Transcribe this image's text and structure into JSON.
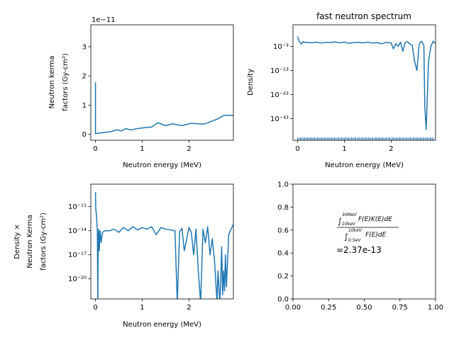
{
  "chart_data": [
    {
      "type": "line",
      "title": "",
      "xlabel": "Neutron energy (MeV)",
      "ylabel_lines": [
        "Neutron kerma",
        "factors (Gy-cm²)"
      ],
      "y_offset_text": "1e−11",
      "x_tick_labels": [
        "0",
        "1",
        "2"
      ],
      "y_tick_labels": [
        "0",
        "1",
        "2",
        "3"
      ],
      "xlim": [
        -0.1,
        2.95
      ],
      "ylim": [
        -0.2,
        3.75
      ],
      "color": "#1f77b4",
      "series": [
        {
          "x": [
            0.0,
            0.0,
            0.001,
            0.05,
            0.2,
            0.35,
            0.45,
            0.55,
            0.65,
            0.75,
            0.9,
            1.05,
            1.2,
            1.33,
            1.5,
            1.65,
            1.85,
            2.05,
            2.32,
            2.6,
            2.75,
            2.95
          ],
          "y": [
            1.78,
            0.08,
            0.02,
            0.04,
            0.07,
            0.1,
            0.16,
            0.12,
            0.2,
            0.15,
            0.2,
            0.23,
            0.25,
            0.4,
            0.3,
            0.36,
            0.3,
            0.38,
            0.35,
            0.52,
            0.65,
            0.65
          ]
        }
      ]
    },
    {
      "type": "line",
      "title": "fast neutron spectrum",
      "xlabel": "Neutron energy (MeV)",
      "ylabel": "Density",
      "x_tick_labels": [
        "0",
        "1",
        "2"
      ],
      "y_tick_labels": [
        "10⁻³",
        "10⁻¹³",
        "10⁻²³",
        "10⁻³³"
      ],
      "y_scale": "log",
      "xlim": [
        -0.1,
        2.95
      ],
      "ylim_log10": [
        -42,
        6
      ],
      "rug": true,
      "color": "#1f77b4",
      "series": [
        {
          "x": [
            0.0,
            0.03,
            0.08,
            0.12,
            0.15,
            0.2,
            0.3,
            0.4,
            0.5,
            0.6,
            0.7,
            0.8,
            0.9,
            1.0,
            1.1,
            1.2,
            1.3,
            1.4,
            1.5,
            1.6,
            1.7,
            1.8,
            1.9,
            2.0,
            2.05,
            2.1,
            2.15,
            2.2,
            2.25,
            2.3,
            2.35,
            2.4,
            2.45,
            2.5,
            2.55,
            2.6,
            2.65,
            2.7,
            2.72,
            2.75,
            2.8,
            2.85,
            2.9,
            2.95
          ],
          "log10_density": [
            1.2,
            -0.8,
            -2.0,
            -1.0,
            -1.4,
            -1.3,
            -1.5,
            -1.2,
            -1.6,
            -1.3,
            -1.4,
            -1.1,
            -1.5,
            -1.2,
            -1.7,
            -1.4,
            -1.3,
            -1.5,
            -1.2,
            -1.6,
            -1.4,
            -1.9,
            -1.3,
            -1.6,
            -4.0,
            -1.8,
            -3.0,
            -1.2,
            -5.0,
            -1.4,
            -1.0,
            -2.0,
            -2.5,
            -9.0,
            -13.0,
            -2.0,
            -0.8,
            -2.5,
            -28.0,
            -37.5,
            -9.0,
            -3.0,
            -0.8,
            -1.8
          ]
        }
      ]
    },
    {
      "type": "line",
      "title": "",
      "xlabel": "Neutron energy (MeV)",
      "ylabel_lines": [
        "Density ×",
        "Neutron Kerma",
        "factors (Gy-cm²)"
      ],
      "x_tick_labels": [
        "0",
        "1",
        "2"
      ],
      "y_tick_labels": [
        "10⁻¹¹",
        "10⁻¹⁴",
        "10⁻¹⁷",
        "10⁻²⁰"
      ],
      "y_scale": "log",
      "xlim": [
        -0.1,
        2.95
      ],
      "ylim_log10": [
        -22.5,
        -8.2
      ],
      "color": "#1f77b4",
      "series": [
        {
          "x": [
            0.0,
            0.005,
            0.01,
            0.02,
            0.04,
            0.05,
            0.06,
            0.07,
            0.08,
            0.1,
            0.12,
            0.15,
            0.2,
            0.3,
            0.4,
            0.5,
            0.6,
            0.7,
            0.8,
            0.9,
            1.0,
            1.1,
            1.2,
            1.3,
            1.4,
            1.5,
            1.6,
            1.7,
            1.75,
            1.8,
            1.85,
            1.9,
            2.0,
            2.05,
            2.1,
            2.15,
            2.2,
            2.25,
            2.3,
            2.35,
            2.4,
            2.45,
            2.5,
            2.55,
            2.6,
            2.62,
            2.64,
            2.66,
            2.68,
            2.7,
            2.72,
            2.74,
            2.76,
            2.78,
            2.8,
            2.85,
            2.9,
            2.95
          ],
          "log10_value": [
            -9.2,
            -11.0,
            -11.5,
            -12.0,
            -14.0,
            -23.0,
            -14.5,
            -13.8,
            -16.5,
            -14.0,
            -15.5,
            -14.2,
            -14.0,
            -14.0,
            -13.8,
            -14.2,
            -13.6,
            -14.0,
            -13.5,
            -13.9,
            -13.6,
            -13.8,
            -13.5,
            -14.5,
            -13.6,
            -13.8,
            -13.9,
            -14.0,
            -23.0,
            -14.1,
            -13.7,
            -16.5,
            -13.6,
            -14.2,
            -17.0,
            -13.8,
            -19.0,
            -23.0,
            -13.8,
            -15.5,
            -13.5,
            -17.0,
            -15.0,
            -18.0,
            -23.0,
            -19.0,
            -21.0,
            -23.0,
            -20.0,
            -16.0,
            -22.0,
            -19.0,
            -21.5,
            -17.0,
            -21.0,
            -14.5,
            -13.8,
            -13.2
          ]
        }
      ]
    },
    {
      "type": "scatter",
      "title": "",
      "x_tick_labels": [
        "0.00",
        "0.25",
        "0.50",
        "0.75",
        "1.00"
      ],
      "y_tick_labels": [
        "0.0",
        "0.2",
        "0.4",
        "0.6",
        "0.8",
        "1.0"
      ],
      "xlim": [
        0,
        1
      ],
      "ylim": [
        0,
        1
      ],
      "annotation": {
        "upper_limit": "30MeV",
        "lower_limit": "10keV",
        "numerator_integrand": "F(E)K(E)dE",
        "denom_upper_limit": "10keV",
        "denom_lower_limit": "0.5eV",
        "denominator_integrand": "F(E)dE",
        "result_text": "=2.37e-13"
      }
    }
  ]
}
